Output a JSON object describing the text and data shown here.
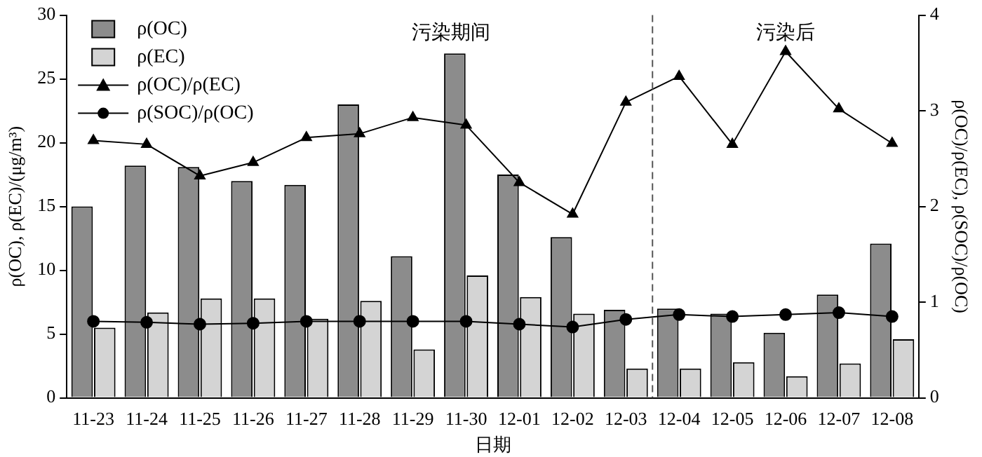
{
  "chart_data": {
    "type": "bar",
    "xlabel": "日期",
    "ylabel": "ρ(OC), ρ(EC)/(μg/m³)",
    "y2label": "ρ(OC)/ρ(EC), ρ(SOC)/ρ(OC)",
    "categories": [
      "11-23",
      "11-24",
      "11-25",
      "11-26",
      "11-27",
      "11-28",
      "11-29",
      "11-30",
      "12-01",
      "12-02",
      "12-03",
      "12-04",
      "12-05",
      "12-06",
      "12-07",
      "12-08"
    ],
    "series": [
      {
        "name": "ρ(OC)",
        "color": "#8c8c8c",
        "values": [
          15.0,
          18.2,
          18.1,
          17.0,
          16.7,
          23.0,
          11.1,
          27.0,
          17.5,
          12.6,
          6.9,
          7.0,
          6.6,
          5.1,
          8.1,
          12.1
        ]
      },
      {
        "name": "ρ(EC)",
        "color": "#d4d4d4",
        "values": [
          5.5,
          6.7,
          7.8,
          7.8,
          6.2,
          7.6,
          3.8,
          9.6,
          7.9,
          6.6,
          2.3,
          2.3,
          2.8,
          1.7,
          2.7,
          4.6
        ]
      },
      {
        "name": "ρ(OC)/ρ(EC)",
        "type": "line",
        "axis": "y2",
        "marker": "triangle",
        "color": "#000000",
        "values": [
          2.69,
          2.65,
          2.32,
          2.46,
          2.72,
          2.76,
          2.93,
          2.85,
          2.25,
          1.92,
          3.09,
          3.36,
          2.65,
          3.62,
          3.02,
          2.66
        ]
      },
      {
        "name": "ρ(SOC)/ρ(OC)",
        "type": "line",
        "axis": "y2",
        "marker": "circle",
        "color": "#000000",
        "values": [
          0.8,
          0.79,
          0.77,
          0.78,
          0.8,
          0.8,
          0.8,
          0.8,
          0.77,
          0.74,
          0.82,
          0.87,
          0.85,
          0.87,
          0.89,
          0.85
        ]
      }
    ],
    "ylim": [
      0,
      30
    ],
    "yticks": [
      0,
      5,
      10,
      15,
      20,
      25,
      30
    ],
    "y2lim": [
      0,
      4
    ],
    "y2ticks": [
      0,
      1,
      2,
      3,
      4
    ],
    "annotations": [
      "污染期间",
      "污染后"
    ],
    "legend": "top left",
    "grid": false
  }
}
